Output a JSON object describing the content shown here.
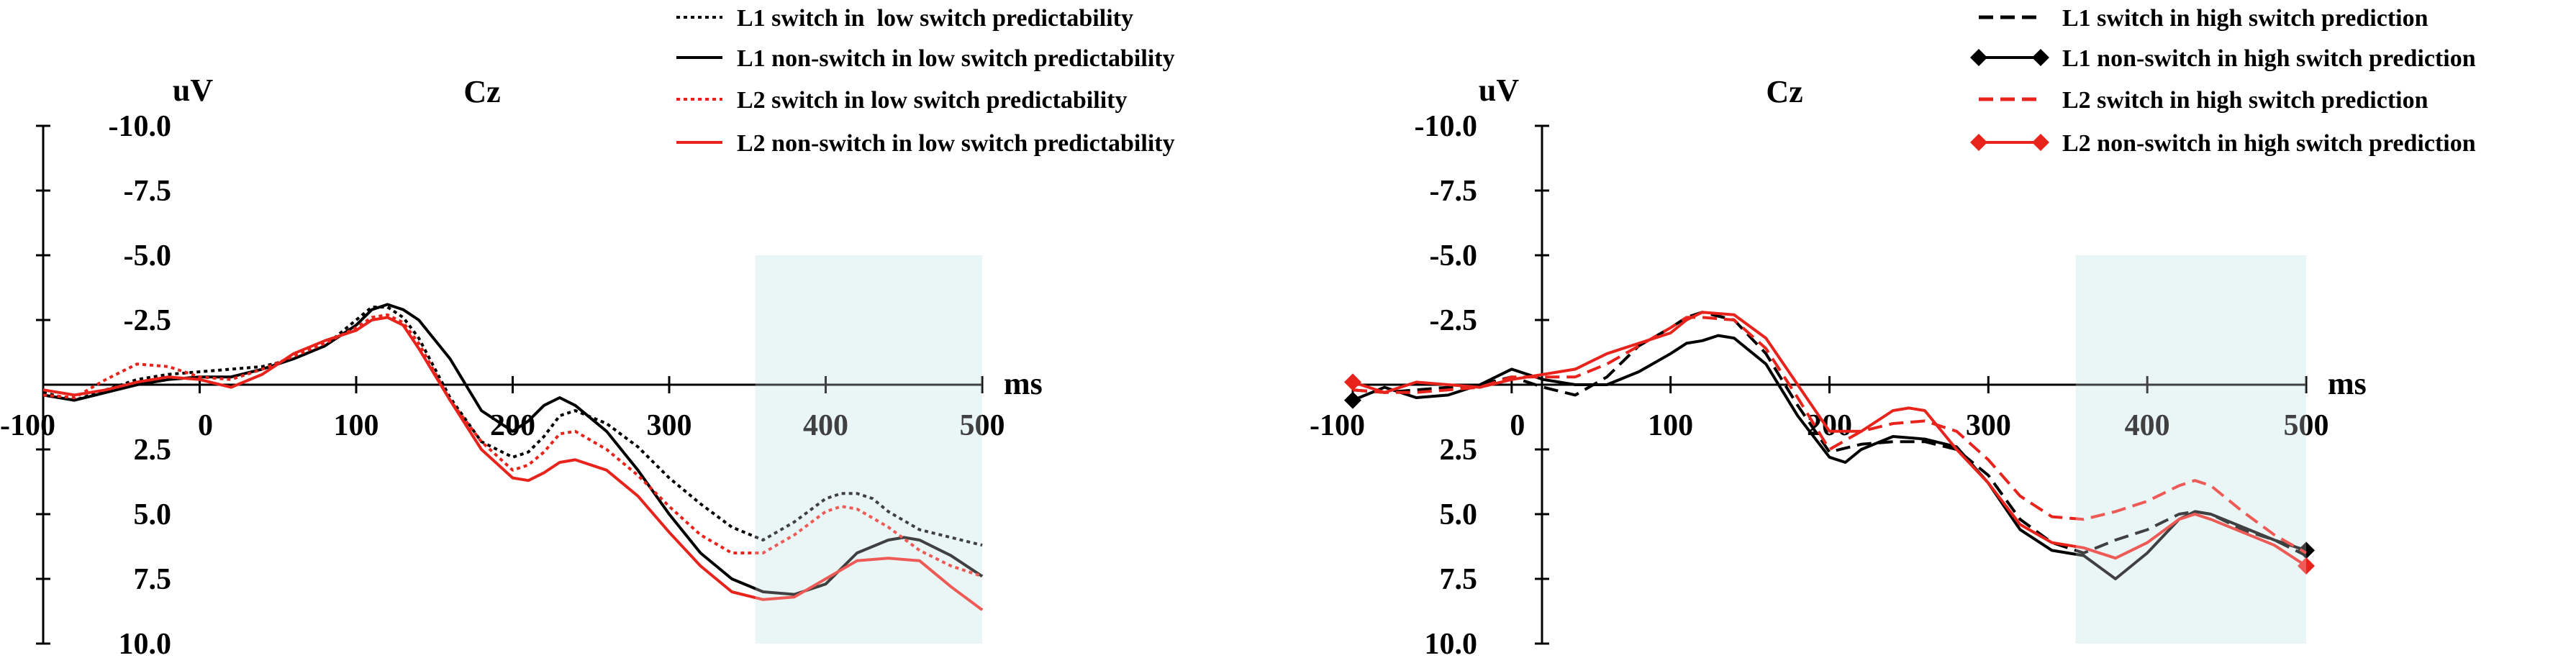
{
  "chart_data": [
    {
      "type": "line",
      "channel": "Cz",
      "ylabel": "uV",
      "xlabel": "ms",
      "y_inverted": true,
      "xlim": [
        -100,
        500
      ],
      "ylim": [
        -10.0,
        10.0
      ],
      "x_ticks": [
        "-100",
        "0",
        "100",
        "200",
        "300",
        "400",
        "500"
      ],
      "y_ticks": [
        "-10.0",
        "-7.5",
        "-5.0",
        "-2.5",
        "2.5",
        "5.0",
        "7.5",
        "10.0"
      ],
      "highlight_window": [
        355,
        500
      ],
      "highlight_color": "#e3f3f3",
      "legend_position": "top-right",
      "series": [
        {
          "name": "L1 switch in  low switch predictability",
          "color": "#000000",
          "dash": "dotted",
          "x": [
            -100,
            -80,
            -60,
            -40,
            -20,
            0,
            20,
            40,
            60,
            80,
            100,
            110,
            120,
            130,
            140,
            160,
            180,
            200,
            210,
            220,
            230,
            240,
            260,
            280,
            300,
            320,
            340,
            360,
            380,
            400,
            410,
            420,
            430,
            440,
            460,
            480,
            500
          ],
          "y": [
            0.3,
            0.6,
            0.2,
            -0.2,
            -0.4,
            -0.5,
            -0.6,
            -0.7,
            -1.0,
            -1.5,
            -2.5,
            -3.0,
            -3.0,
            -2.6,
            -1.8,
            0.5,
            2.2,
            2.8,
            2.6,
            2.0,
            1.2,
            1.0,
            1.5,
            2.4,
            3.6,
            4.6,
            5.5,
            6.0,
            5.3,
            4.4,
            4.2,
            4.2,
            4.4,
            4.9,
            5.6,
            5.9,
            6.2
          ]
        },
        {
          "name": "L1 non-switch in low switch predictability",
          "color": "#000000",
          "dash": "solid",
          "x": [
            -100,
            -80,
            -60,
            -40,
            -20,
            0,
            20,
            40,
            60,
            80,
            100,
            110,
            120,
            130,
            140,
            160,
            180,
            200,
            210,
            220,
            230,
            240,
            260,
            280,
            300,
            320,
            340,
            360,
            380,
            400,
            420,
            440,
            450,
            460,
            480,
            500
          ],
          "y": [
            0.4,
            0.6,
            0.3,
            0.0,
            -0.2,
            -0.3,
            -0.3,
            -0.6,
            -1.0,
            -1.5,
            -2.3,
            -2.9,
            -3.1,
            -2.9,
            -2.5,
            -1.0,
            1.0,
            1.8,
            1.4,
            0.8,
            0.5,
            0.8,
            1.8,
            3.3,
            5.0,
            6.5,
            7.5,
            8.0,
            8.1,
            7.7,
            6.5,
            6.0,
            5.9,
            6.0,
            6.6,
            7.4
          ]
        },
        {
          "name": "L2 switch in low switch predictability",
          "color": "#e8231c",
          "dash": "dotted",
          "x": [
            -100,
            -80,
            -60,
            -40,
            -20,
            0,
            20,
            40,
            60,
            80,
            100,
            110,
            120,
            130,
            140,
            160,
            180,
            200,
            210,
            220,
            230,
            240,
            260,
            280,
            300,
            320,
            340,
            360,
            380,
            400,
            410,
            420,
            440,
            460,
            480,
            500
          ],
          "y": [
            0.4,
            0.5,
            -0.2,
            -0.8,
            -0.7,
            -0.3,
            -0.2,
            -0.6,
            -1.1,
            -1.6,
            -2.2,
            -2.6,
            -2.7,
            -2.4,
            -1.6,
            0.6,
            2.2,
            3.3,
            3.1,
            2.6,
            1.9,
            1.8,
            2.5,
            3.5,
            4.7,
            5.8,
            6.5,
            6.5,
            5.8,
            4.9,
            4.7,
            4.8,
            5.5,
            6.4,
            7.0,
            7.4
          ]
        },
        {
          "name": "L2 non-switch in low switch predictability",
          "color": "#e8231c",
          "dash": "solid",
          "x": [
            -100,
            -80,
            -60,
            -40,
            -20,
            0,
            20,
            40,
            60,
            80,
            100,
            110,
            120,
            130,
            140,
            160,
            180,
            200,
            210,
            220,
            230,
            240,
            260,
            280,
            300,
            320,
            340,
            360,
            380,
            400,
            420,
            440,
            460,
            480,
            500
          ],
          "y": [
            0.2,
            0.4,
            0.2,
            -0.1,
            -0.3,
            -0.2,
            0.1,
            -0.4,
            -1.2,
            -1.7,
            -2.1,
            -2.5,
            -2.6,
            -2.3,
            -1.4,
            0.6,
            2.5,
            3.6,
            3.7,
            3.4,
            3.0,
            2.9,
            3.3,
            4.3,
            5.7,
            7.0,
            8.0,
            8.3,
            8.2,
            7.5,
            6.8,
            6.7,
            6.8,
            7.8,
            8.7
          ]
        }
      ]
    },
    {
      "type": "line",
      "channel": "Cz",
      "ylabel": "uV",
      "xlabel": "ms",
      "y_inverted": true,
      "xlim": [
        -100,
        500
      ],
      "ylim": [
        -10.0,
        10.0
      ],
      "x_ticks": [
        "-100",
        "0",
        "100",
        "200",
        "300",
        "400",
        "500"
      ],
      "y_ticks": [
        "-10.0",
        "-7.5",
        "-5.0",
        "-2.5",
        "2.5",
        "5.0",
        "7.5",
        "10.0"
      ],
      "highlight_window": [
        355,
        500
      ],
      "highlight_color": "#e3f3f3",
      "legend_position": "top-right",
      "series": [
        {
          "name": "L1 switch in high switch prediction",
          "color": "#000000",
          "dash": "dashed",
          "marker": "none",
          "x": [
            -100,
            -80,
            -60,
            -40,
            -20,
            0,
            20,
            40,
            60,
            80,
            100,
            110,
            120,
            140,
            160,
            180,
            200,
            220,
            240,
            260,
            280,
            300,
            320,
            340,
            360,
            380,
            400,
            420,
            430,
            440,
            460,
            480,
            500
          ],
          "y": [
            0.2,
            0.3,
            0.2,
            0.1,
            0.0,
            -0.3,
            0.1,
            0.4,
            -0.3,
            -1.5,
            -2.2,
            -2.6,
            -2.8,
            -2.5,
            -1.2,
            0.8,
            2.6,
            2.3,
            2.2,
            2.2,
            2.5,
            3.5,
            5.2,
            6.1,
            6.5,
            6.0,
            5.6,
            5.0,
            4.9,
            5.0,
            5.6,
            6.0,
            6.6
          ]
        },
        {
          "name": "L1 non-switch in high switch prediction",
          "color": "#000000",
          "dash": "solid",
          "marker": "diamond",
          "x": [
            -100,
            -80,
            -60,
            -40,
            -20,
            0,
            20,
            40,
            60,
            80,
            100,
            110,
            120,
            130,
            140,
            160,
            180,
            200,
            210,
            220,
            240,
            260,
            280,
            300,
            320,
            340,
            360,
            380,
            400,
            420,
            430,
            440,
            460,
            480,
            500
          ],
          "y": [
            0.6,
            0.1,
            0.5,
            0.4,
            0.0,
            -0.6,
            -0.2,
            0.0,
            0.0,
            -0.5,
            -1.2,
            -1.6,
            -1.7,
            -1.9,
            -1.8,
            -0.8,
            1.2,
            2.8,
            3.0,
            2.5,
            2.0,
            2.1,
            2.4,
            3.8,
            5.6,
            6.4,
            6.6,
            7.5,
            6.5,
            5.2,
            4.9,
            5.0,
            5.5,
            6.0,
            6.4
          ]
        },
        {
          "name": "L2 switch in high switch prediction",
          "color": "#e8231c",
          "dash": "dashed",
          "marker": "none",
          "x": [
            -100,
            -80,
            -60,
            -40,
            -20,
            0,
            20,
            40,
            60,
            80,
            100,
            110,
            120,
            140,
            160,
            180,
            200,
            220,
            240,
            260,
            280,
            300,
            320,
            340,
            360,
            380,
            400,
            420,
            430,
            440,
            460,
            480,
            500
          ],
          "y": [
            0.2,
            0.3,
            0.3,
            0.2,
            0.1,
            -0.3,
            -0.3,
            -0.3,
            -0.8,
            -1.5,
            -2.2,
            -2.6,
            -2.6,
            -2.5,
            -1.4,
            0.5,
            2.5,
            1.8,
            1.5,
            1.4,
            1.8,
            2.9,
            4.3,
            5.1,
            5.2,
            4.9,
            4.5,
            3.9,
            3.7,
            3.9,
            4.9,
            5.8,
            6.5
          ]
        },
        {
          "name": "L2 non-switch in high switch prediction",
          "color": "#e8231c",
          "dash": "solid",
          "marker": "diamond",
          "x": [
            -100,
            -80,
            -60,
            -40,
            -20,
            0,
            20,
            40,
            60,
            80,
            100,
            110,
            120,
            140,
            160,
            180,
            200,
            220,
            240,
            250,
            260,
            280,
            300,
            320,
            340,
            360,
            380,
            400,
            420,
            430,
            440,
            460,
            480,
            500
          ],
          "y": [
            -0.1,
            0.3,
            -0.1,
            0.0,
            0.1,
            -0.2,
            -0.4,
            -0.6,
            -1.2,
            -1.6,
            -2.0,
            -2.5,
            -2.8,
            -2.7,
            -1.8,
            0.0,
            1.8,
            1.8,
            1.0,
            0.9,
            1.0,
            2.5,
            3.8,
            5.4,
            6.1,
            6.3,
            6.7,
            6.1,
            5.2,
            5.0,
            5.2,
            5.7,
            6.2,
            7.0
          ]
        }
      ]
    }
  ]
}
